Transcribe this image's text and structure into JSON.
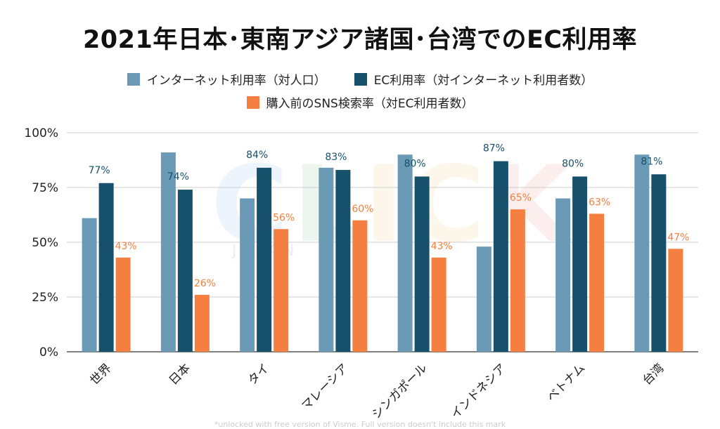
{
  "chart_data": {
    "type": "bar",
    "title": "2021年日本･東南アジア諸国･台湾でのEC利用率",
    "categories": [
      "世界",
      "日本",
      "タイ",
      "マレーシア",
      "シンガポール",
      "インドネシア",
      "ベトナム",
      "台湾"
    ],
    "series": [
      {
        "name": "インターネット利用率（対人口）",
        "color": "#6a9ab6",
        "values": [
          61,
          91,
          70,
          84,
          90,
          48,
          70,
          90
        ],
        "labels": [
          null,
          null,
          null,
          null,
          null,
          null,
          null,
          null
        ]
      },
      {
        "name": "EC利用率（対インターネット利用者数）",
        "color": "#17506b",
        "values": [
          77,
          74,
          84,
          83,
          80,
          87,
          80,
          81
        ],
        "labels": [
          "77%",
          "74%",
          "84%",
          "83%",
          "80%",
          "87%",
          "80%",
          "81%"
        ]
      },
      {
        "name": "購入前のSNS検索率（対EC利用者数）",
        "color": "#f57f40",
        "values": [
          43,
          26,
          56,
          60,
          43,
          65,
          63,
          47
        ],
        "labels": [
          "43%",
          "26%",
          "56%",
          "60%",
          "43%",
          "65%",
          "63%",
          "47%"
        ]
      }
    ],
    "ylim": [
      0,
      100
    ],
    "yticks": [
      0,
      25,
      50,
      75,
      100
    ],
    "ytick_labels": [
      "0%",
      "25%",
      "50%",
      "75%",
      "100%"
    ],
    "grid": true,
    "legend_position": "top-center"
  },
  "watermark": {
    "letters": [
      "C",
      "L",
      "I",
      "C",
      "K"
    ],
    "sub": "JAPAN"
  },
  "footnote": "*unlocked with free version of Visme. Full version doesn't include this mark"
}
